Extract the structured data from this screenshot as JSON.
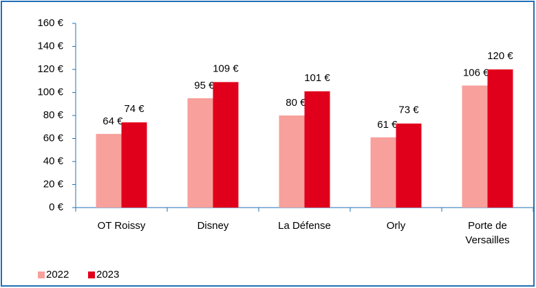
{
  "chart_data": {
    "type": "bar",
    "categories": [
      "OT Roissy",
      "Disney",
      "La Défense",
      "Orly",
      "Porte de Versailles"
    ],
    "series": [
      {
        "name": "2022",
        "color": "#f7a09c",
        "values": [
          64,
          95,
          80,
          61,
          106
        ],
        "value_labels": [
          "64 €",
          "95 €",
          "80 €",
          "61 €",
          "106 €"
        ]
      },
      {
        "name": "2023",
        "color": "#e0001b",
        "values": [
          74,
          109,
          101,
          73,
          120
        ],
        "value_labels": [
          "74 €",
          "109 €",
          "101 €",
          "73 €",
          "120 €"
        ]
      }
    ],
    "ylim": [
      0,
      160
    ],
    "yticks": [
      {
        "value": 0,
        "label": "0 €"
      },
      {
        "value": 20,
        "label": "20 €"
      },
      {
        "value": 40,
        "label": "40 €"
      },
      {
        "value": 60,
        "label": "60 €"
      },
      {
        "value": 80,
        "label": "80 €"
      },
      {
        "value": 100,
        "label": "100 €"
      },
      {
        "value": 120,
        "label": "120 €"
      },
      {
        "value": 140,
        "label": "140 €"
      },
      {
        "value": 160,
        "label": "160 €"
      }
    ],
    "grid": false,
    "legend": "bottom-left"
  }
}
